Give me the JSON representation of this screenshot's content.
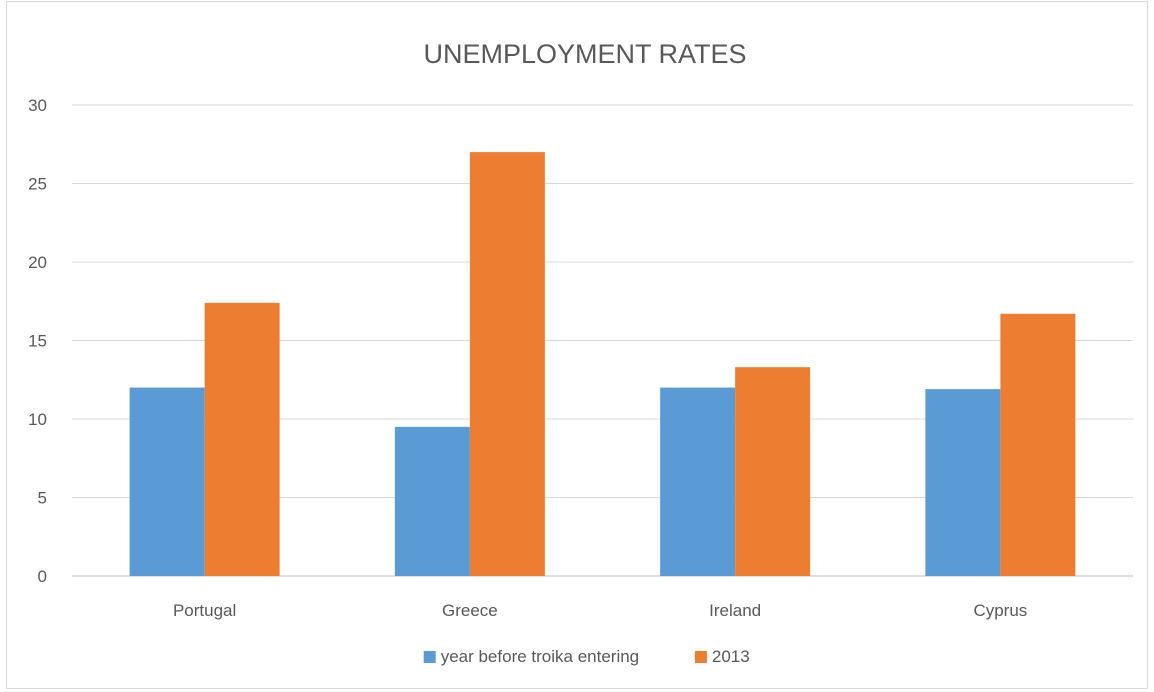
{
  "chart_data": {
    "type": "bar",
    "title": "UNEMPLOYMENT RATES",
    "categories": [
      "Portugal",
      "Greece",
      "Ireland",
      "Cyprus"
    ],
    "series": [
      {
        "name": "year before troika entering",
        "values": [
          12.0,
          9.5,
          12.0,
          11.9
        ],
        "color": "#5b9bd5"
      },
      {
        "name": "2013",
        "values": [
          17.4,
          27.0,
          13.3,
          16.7
        ],
        "color": "#ed7d31"
      }
    ],
    "yticks": [
      0,
      5,
      10,
      15,
      20,
      25,
      30
    ],
    "ylim": [
      0,
      30
    ],
    "xlabel": "",
    "ylabel": "",
    "grid": true,
    "legend": "bottom"
  }
}
